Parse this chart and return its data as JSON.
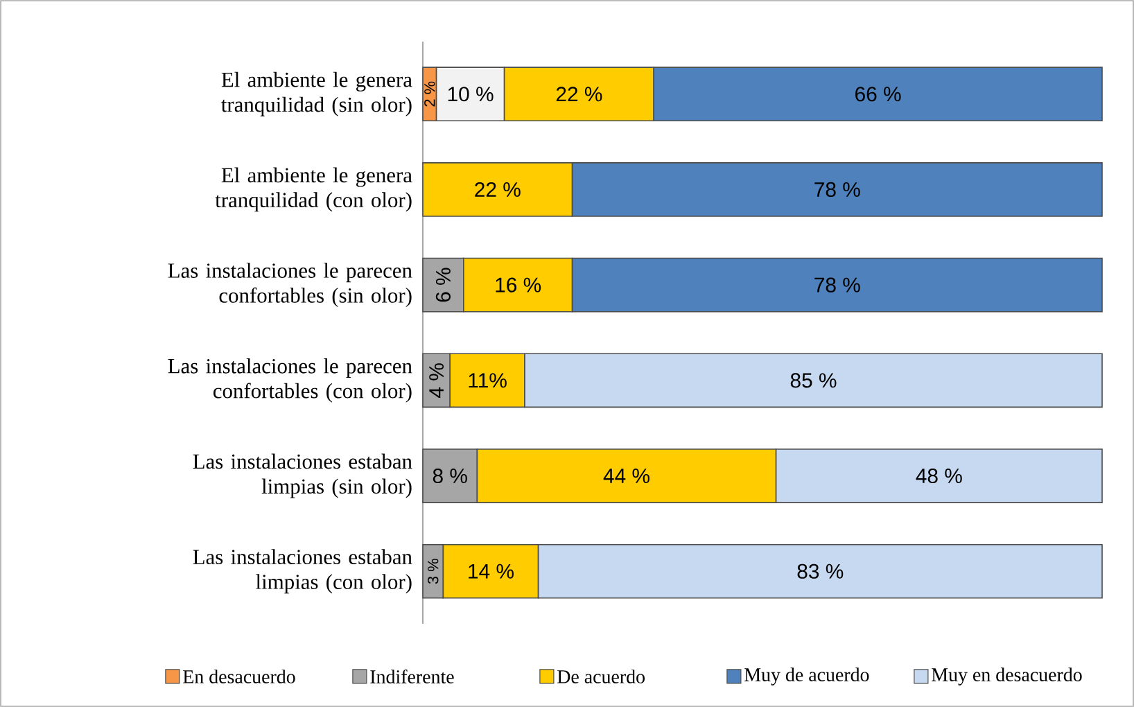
{
  "chart_data": {
    "type": "bar",
    "orientation": "horizontal",
    "stacked": true,
    "legend": "bottom",
    "categories": [
      "El ambiente le genera tranquilidad (sin olor)",
      "El ambiente le genera tranquilidad (con olor)",
      "Las instalaciones le parecen confortables (sin olor)",
      "Las instalaciones le parecen confortables (con olor)",
      "Las instalaciones estaban limpias (sin olor)",
      "Las instalaciones estaban limpias (con olor)"
    ],
    "series": [
      {
        "name": "En desacuerdo",
        "color": "#f79646",
        "values": [
          2,
          null,
          null,
          null,
          null,
          null
        ],
        "value_labels": [
          "2 %",
          null,
          null,
          null,
          null,
          null
        ]
      },
      {
        "name": "Indiferente",
        "color": "#a6a6a6",
        "colors": [
          "#f2f2f2",
          "#a6a6a6",
          "#a6a6a6",
          "#a6a6a6",
          "#a6a6a6",
          "#a6a6a6"
        ],
        "values": [
          10,
          null,
          6,
          4,
          8,
          3
        ],
        "value_labels": [
          "10 %",
          null,
          "6 %",
          "4 %",
          "8 %",
          "3 %"
        ]
      },
      {
        "name": "De acuerdo",
        "color": "#ffcc00",
        "values": [
          22,
          22,
          16,
          11,
          44,
          14
        ],
        "value_labels": [
          "22 %",
          "22 %",
          "16 %",
          "11%",
          "44 %",
          "14 %"
        ]
      },
      {
        "name": "Muy de acuerdo",
        "color": "#4f81bd",
        "values": [
          66,
          78,
          78,
          null,
          null,
          null
        ],
        "value_labels": [
          "66 %",
          "78 %",
          "78 %",
          null,
          null,
          null
        ]
      },
      {
        "name": "Muy en desacuerdo",
        "color": "#c6d9f1",
        "values": [
          null,
          null,
          null,
          85,
          48,
          83
        ],
        "value_labels": [
          null,
          null,
          null,
          "85 %",
          "48 %",
          "83 %"
        ]
      }
    ]
  }
}
